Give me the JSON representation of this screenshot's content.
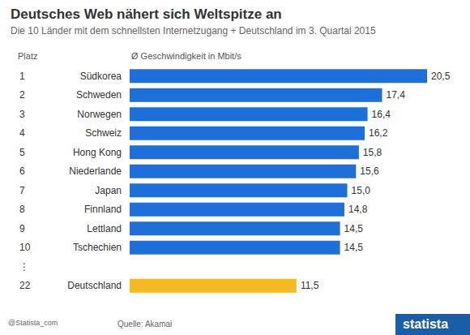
{
  "chart_data": {
    "type": "bar",
    "orientation": "horizontal",
    "title": "Deutsches Web nähert sich Weltspitze an",
    "subtitle": "Die 10 Länder mit dem schnellsten Internetzugang + Deutschland im 3. Quartal 2015",
    "rank_header": "Platz",
    "value_header": "Ø Geschwindigkeit in Mbit/s",
    "categories": [
      "Südkorea",
      "Schweden",
      "Norwegen",
      "Schweiz",
      "Hong Kong",
      "Niederlande",
      "Japan",
      "Finnland",
      "Lettland",
      "Tschechien",
      null,
      "Deutschland"
    ],
    "ranks": [
      "1",
      "2",
      "3",
      "4",
      "5",
      "6",
      "7",
      "8",
      "9",
      "10",
      "⋮",
      "22"
    ],
    "values": [
      20.5,
      17.4,
      16.4,
      16.2,
      15.8,
      15.6,
      15.0,
      14.8,
      14.5,
      14.5,
      null,
      11.5
    ],
    "value_labels": [
      "20,5",
      "17,4",
      "16,4",
      "16,2",
      "15,8",
      "15,6",
      "15,0",
      "14,8",
      "14,5",
      "14,5",
      null,
      "11,5"
    ],
    "colors": [
      "#1f6fd8",
      "#1f6fd8",
      "#1f6fd8",
      "#1f6fd8",
      "#1f6fd8",
      "#1f6fd8",
      "#1f6fd8",
      "#1f6fd8",
      "#1f6fd8",
      "#1f6fd8",
      null,
      "#f5b921"
    ],
    "xlim": [
      0,
      20.5
    ],
    "data_labels": true,
    "tick_labels": "y",
    "grid": false,
    "credit": "@Statista_com",
    "source": "Quelle: Akamai",
    "brand": "statista"
  }
}
